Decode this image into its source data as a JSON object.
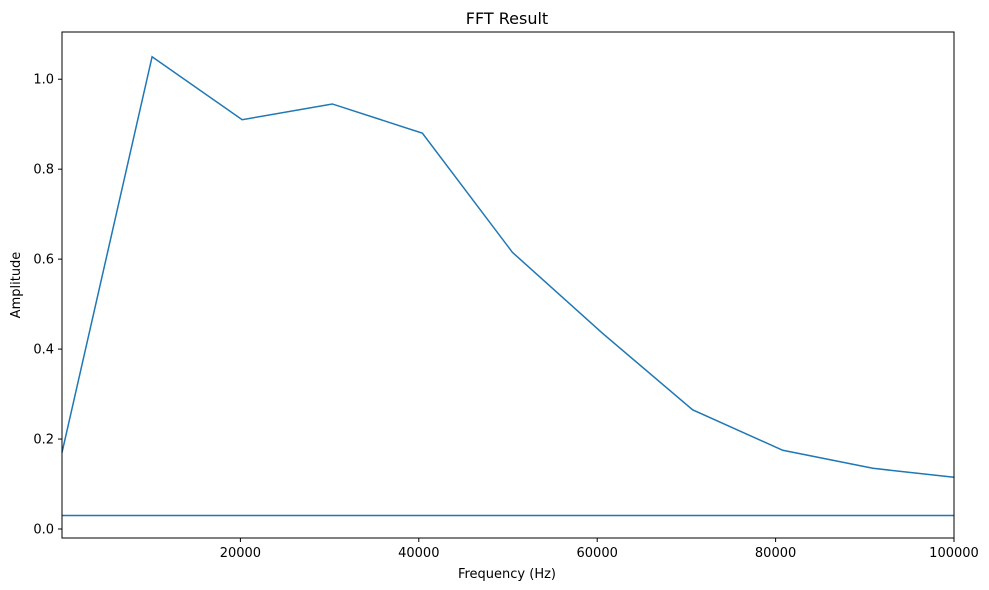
{
  "chart_data": {
    "type": "line",
    "title": "FFT Result",
    "xlabel": "Frequency (Hz)",
    "ylabel": "Amplitude",
    "xlim": [
      0,
      100000
    ],
    "ylim": [
      -0.02,
      1.105
    ],
    "xticks": [
      20000,
      40000,
      60000,
      80000,
      100000
    ],
    "xtick_labels": [
      "20000",
      "40000",
      "60000",
      "80000",
      "100000"
    ],
    "yticks": [
      0.0,
      0.2,
      0.4,
      0.6,
      0.8,
      1.0
    ],
    "ytick_labels": [
      "0.0",
      "0.2",
      "0.4",
      "0.6",
      "0.8",
      "1.0"
    ],
    "grid": false,
    "color": "#1f77b4",
    "series": [
      {
        "x": [
          0,
          10100,
          20200,
          30300,
          40400,
          50500,
          60600,
          70700,
          80800,
          90900,
          100000
        ],
        "y": [
          0.17,
          1.05,
          0.91,
          0.945,
          0.88,
          0.615,
          0.435,
          0.265,
          0.175,
          0.135,
          0.115
        ]
      },
      {
        "x": [
          0,
          100000
        ],
        "y": [
          0.03,
          0.03
        ]
      }
    ]
  }
}
